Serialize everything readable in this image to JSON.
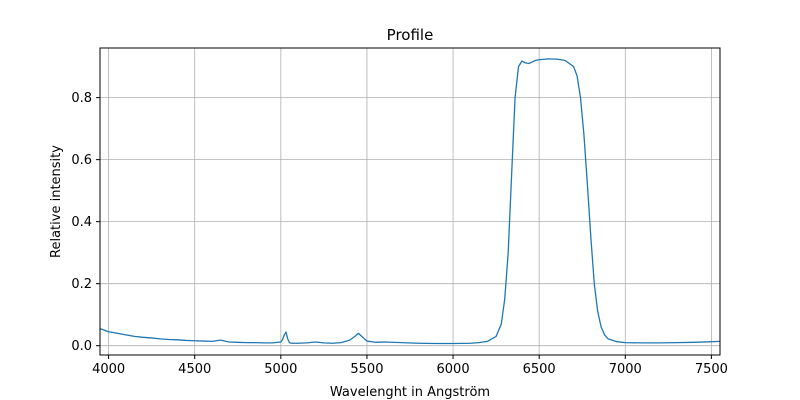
{
  "chart_data": {
    "type": "line",
    "title": "Profile",
    "xlabel": "Wavelenght in Angström",
    "ylabel": "Relative intensity",
    "xlim": [
      3950,
      7550
    ],
    "ylim": [
      -0.03,
      0.96
    ],
    "xticks": [
      4000,
      4500,
      5000,
      5500,
      6000,
      6500,
      7000,
      7500
    ],
    "yticks": [
      0.0,
      0.2,
      0.4,
      0.6,
      0.8
    ],
    "xtick_labels": [
      "4000",
      "4500",
      "5000",
      "5500",
      "6000",
      "6500",
      "7000",
      "7500"
    ],
    "ytick_labels": [
      "0.0",
      "0.2",
      "0.4",
      "0.6",
      "0.8"
    ],
    "grid": true,
    "colors": {
      "line": "#1f77b4",
      "grid": "#b0b0b0",
      "axes": "#000000"
    },
    "series": [
      {
        "x": [
          3950,
          4000,
          4050,
          4100,
          4150,
          4200,
          4250,
          4300,
          4350,
          4400,
          4450,
          4500,
          4550,
          4600,
          4650,
          4700,
          4750,
          4800,
          4850,
          4900,
          4950,
          5000,
          5010,
          5020,
          5030,
          5040,
          5050,
          5060,
          5100,
          5150,
          5200,
          5250,
          5300,
          5350,
          5400,
          5430,
          5450,
          5470,
          5500,
          5550,
          5600,
          5700,
          5800,
          5900,
          6000,
          6100,
          6150,
          6200,
          6250,
          6280,
          6300,
          6320,
          6340,
          6360,
          6380,
          6400,
          6420,
          6440,
          6460,
          6480,
          6500,
          6550,
          6600,
          6650,
          6700,
          6720,
          6740,
          6760,
          6780,
          6800,
          6820,
          6840,
          6860,
          6880,
          6900,
          6950,
          7000,
          7100,
          7200,
          7300,
          7400,
          7500,
          7550
        ],
        "y": [
          0.055,
          0.045,
          0.04,
          0.035,
          0.03,
          0.027,
          0.025,
          0.022,
          0.02,
          0.019,
          0.017,
          0.016,
          0.015,
          0.014,
          0.018,
          0.012,
          0.011,
          0.01,
          0.01,
          0.009,
          0.009,
          0.012,
          0.02,
          0.035,
          0.044,
          0.022,
          0.01,
          0.008,
          0.008,
          0.009,
          0.012,
          0.009,
          0.008,
          0.01,
          0.018,
          0.03,
          0.04,
          0.03,
          0.015,
          0.011,
          0.012,
          0.01,
          0.008,
          0.007,
          0.007,
          0.008,
          0.01,
          0.014,
          0.03,
          0.07,
          0.15,
          0.3,
          0.55,
          0.8,
          0.9,
          0.918,
          0.912,
          0.91,
          0.915,
          0.92,
          0.922,
          0.925,
          0.924,
          0.92,
          0.9,
          0.87,
          0.8,
          0.68,
          0.52,
          0.35,
          0.2,
          0.11,
          0.06,
          0.035,
          0.022,
          0.013,
          0.01,
          0.009,
          0.009,
          0.01,
          0.011,
          0.013,
          0.014
        ]
      }
    ]
  }
}
